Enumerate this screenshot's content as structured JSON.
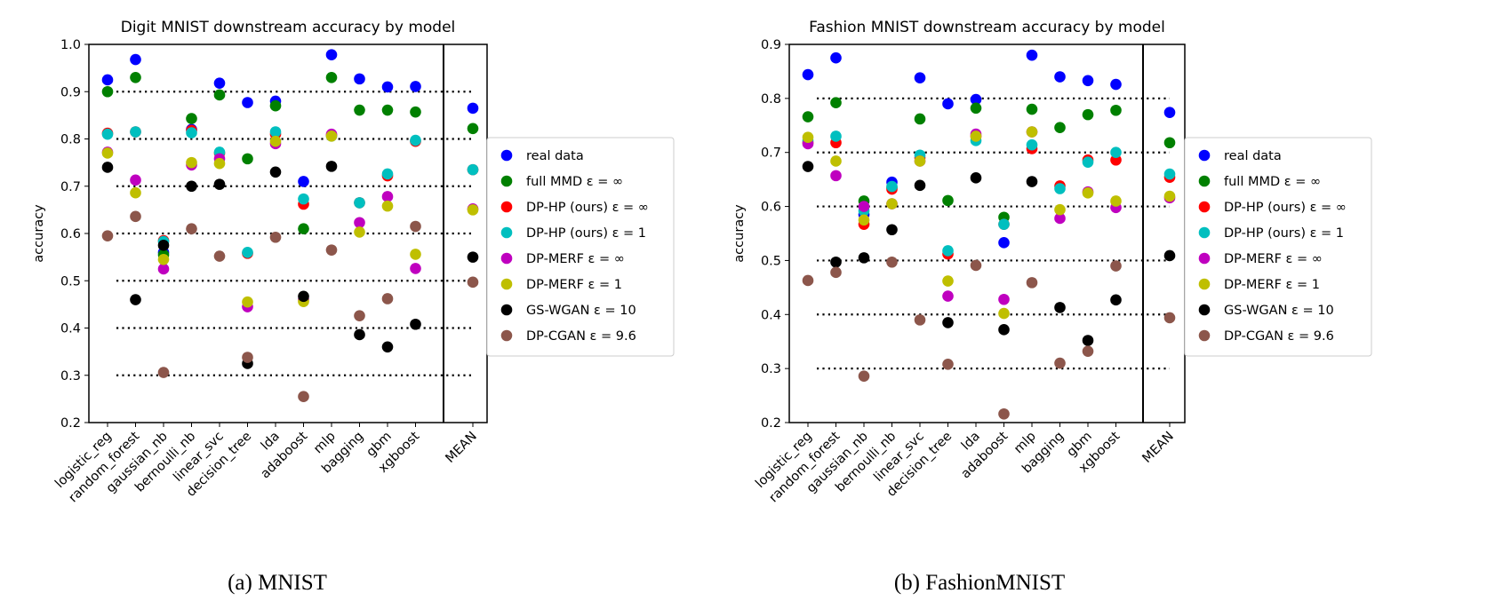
{
  "chart_data": [
    {
      "type": "scatter",
      "title": "Digit MNIST downstream accuracy by model",
      "ylabel": "accuracy",
      "ylim": [
        0.2,
        1.0
      ],
      "yticks": [
        "0.2",
        "0.3",
        "0.4",
        "0.5",
        "0.6",
        "0.7",
        "0.8",
        "0.9",
        "1.0"
      ],
      "grid": "dotted horizontal",
      "legend": "right",
      "caption": "(a) MNIST",
      "categories": [
        "logistic_reg",
        "random_forest",
        "gaussian_nb",
        "bernoulli_nb",
        "linear_svc",
        "decision_tree",
        "lda",
        "adaboost",
        "mlp",
        "bagging",
        "gbm",
        "xgboost",
        "MEAN"
      ],
      "series": [
        {
          "name": "real data",
          "color": "#0000ff",
          "values": [
            0.925,
            0.968,
            0.56,
            0.82,
            0.918,
            0.877,
            0.88,
            0.71,
            0.978,
            0.927,
            0.91,
            0.911,
            0.865
          ]
        },
        {
          "name": "full MMD ε = ∞",
          "color": "#008000",
          "values": [
            0.9,
            0.93,
            0.555,
            0.843,
            0.893,
            0.758,
            0.87,
            0.61,
            0.93,
            0.861,
            0.861,
            0.857,
            0.822
          ]
        },
        {
          "name": "DP-HP (ours) ε = ∞",
          "color": "#ff0000",
          "values": [
            0.812,
            0.815,
            0.585,
            0.818,
            0.77,
            0.558,
            0.81,
            0.662,
            0.808,
            0.665,
            0.722,
            0.795,
            0.735
          ]
        },
        {
          "name": "DP-HP (ours) ε = 1",
          "color": "#00bfbf",
          "values": [
            0.81,
            0.815,
            0.583,
            0.813,
            0.772,
            0.56,
            0.815,
            0.673,
            0.806,
            0.665,
            0.726,
            0.797,
            0.735
          ]
        },
        {
          "name": "DP-MERF ε = ∞",
          "color": "#bf00bf",
          "values": [
            0.772,
            0.713,
            0.525,
            0.745,
            0.758,
            0.445,
            0.79,
            0.46,
            0.81,
            0.623,
            0.678,
            0.526,
            0.652
          ]
        },
        {
          "name": "DP-MERF ε = 1",
          "color": "#bfbf00",
          "values": [
            0.77,
            0.686,
            0.545,
            0.75,
            0.748,
            0.455,
            0.795,
            0.456,
            0.806,
            0.603,
            0.658,
            0.556,
            0.65
          ]
        },
        {
          "name": "GS-WGAN ε = 10",
          "color": "#000000",
          "values": [
            0.74,
            0.46,
            0.575,
            0.7,
            0.704,
            0.325,
            0.73,
            0.467,
            0.742,
            0.386,
            0.36,
            0.408,
            0.55
          ]
        },
        {
          "name": "DP-CGAN ε = 9.6",
          "color": "#8c564b",
          "values": [
            0.595,
            0.636,
            0.306,
            0.61,
            0.552,
            0.338,
            0.592,
            0.255,
            0.565,
            0.426,
            0.462,
            0.615,
            0.497
          ]
        }
      ]
    },
    {
      "type": "scatter",
      "title": "Fashion MNIST downstream accuracy by model",
      "ylabel": "accuracy",
      "ylim": [
        0.2,
        0.9
      ],
      "yticks": [
        "0.2",
        "0.3",
        "0.4",
        "0.5",
        "0.6",
        "0.7",
        "0.8",
        "0.9"
      ],
      "grid": "dotted horizontal",
      "legend": "right",
      "caption": "(b) FashionMNIST",
      "categories": [
        "logistic_reg",
        "random_forest",
        "gaussian_nb",
        "bernoulli_nb",
        "linear_svc",
        "decision_tree",
        "lda",
        "adaboost",
        "mlp",
        "bagging",
        "gbm",
        "xgboost",
        "MEAN"
      ],
      "series": [
        {
          "name": "real data",
          "color": "#0000ff",
          "values": [
            0.844,
            0.875,
            0.585,
            0.645,
            0.838,
            0.79,
            0.798,
            0.533,
            0.88,
            0.84,
            0.833,
            0.826,
            0.774
          ]
        },
        {
          "name": "full MMD ε = ∞",
          "color": "#008000",
          "values": [
            0.766,
            0.792,
            0.61,
            0.635,
            0.762,
            0.611,
            0.782,
            0.58,
            0.78,
            0.746,
            0.77,
            0.778,
            0.718
          ]
        },
        {
          "name": "DP-HP (ours) ε = ∞",
          "color": "#ff0000",
          "values": [
            0.718,
            0.718,
            0.567,
            0.632,
            0.69,
            0.512,
            0.73,
            0.567,
            0.707,
            0.638,
            0.686,
            0.686,
            0.654
          ]
        },
        {
          "name": "DP-HP (ours) ε = 1",
          "color": "#00bfbf",
          "values": [
            0.722,
            0.73,
            0.592,
            0.637,
            0.695,
            0.518,
            0.722,
            0.567,
            0.714,
            0.633,
            0.682,
            0.7,
            0.66
          ]
        },
        {
          "name": "DP-MERF ε = ∞",
          "color": "#bf00bf",
          "values": [
            0.716,
            0.657,
            0.6,
            0.605,
            0.684,
            0.434,
            0.734,
            0.428,
            0.738,
            0.578,
            0.627,
            0.598,
            0.616
          ]
        },
        {
          "name": "DP-MERF ε = 1",
          "color": "#bfbf00",
          "values": [
            0.728,
            0.684,
            0.575,
            0.605,
            0.684,
            0.462,
            0.73,
            0.402,
            0.738,
            0.594,
            0.625,
            0.61,
            0.619
          ]
        },
        {
          "name": "GS-WGAN ε = 10",
          "color": "#000000",
          "values": [
            0.674,
            0.497,
            0.505,
            0.557,
            0.639,
            0.385,
            0.653,
            0.372,
            0.646,
            0.413,
            0.352,
            0.427,
            0.509
          ]
        },
        {
          "name": "DP-CGAN ε = 9.6",
          "color": "#8c564b",
          "values": [
            0.463,
            0.478,
            0.286,
            0.497,
            0.39,
            0.308,
            0.491,
            0.216,
            0.459,
            0.31,
            0.332,
            0.49,
            0.394
          ]
        }
      ]
    }
  ]
}
